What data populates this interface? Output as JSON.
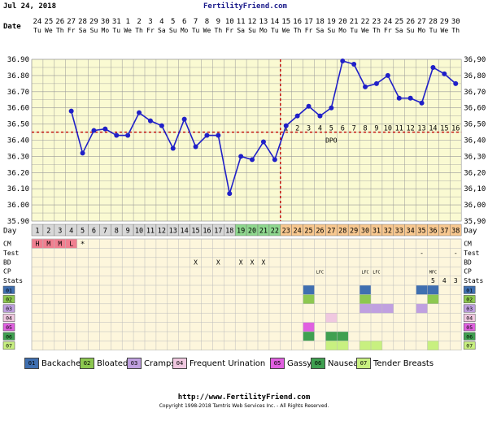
{
  "header": {
    "date": "Jul 24, 2018",
    "site": "FertilityFriend.com"
  },
  "chart_data": {
    "type": "line",
    "date_label": "Date",
    "day_label": "Day",
    "dates": [
      "24",
      "25",
      "26",
      "27",
      "28",
      "29",
      "30",
      "31",
      "1",
      "2",
      "3",
      "4",
      "5",
      "6",
      "7",
      "8",
      "9",
      "10",
      "11",
      "12",
      "13",
      "14",
      "15",
      "16",
      "17",
      "18",
      "19",
      "20",
      "21",
      "22",
      "23",
      "24",
      "25",
      "26",
      "27",
      "28",
      "29",
      "30"
    ],
    "weekdays": [
      "Tu",
      "We",
      "Th",
      "Fr",
      "Sa",
      "Su",
      "Mo",
      "Tu",
      "We",
      "Th",
      "Fr",
      "Sa",
      "Su",
      "Mo",
      "Tu",
      "We",
      "Th",
      "Fr",
      "Sa",
      "Su",
      "Mo",
      "Tu",
      "We",
      "Th",
      "Fr",
      "Sa",
      "Su",
      "Mo",
      "Tu",
      "We",
      "Th",
      "Fr",
      "Sa",
      "Su",
      "Mo",
      "Tu",
      "We",
      "Th"
    ],
    "days": [
      "1",
      "2",
      "3",
      "4",
      "5",
      "6",
      "7",
      "8",
      "9",
      "10",
      "11",
      "12",
      "13",
      "14",
      "15",
      "16",
      "17",
      "18",
      "19",
      "20",
      "21",
      "22",
      "23",
      "24",
      "25",
      "26",
      "27",
      "28",
      "29",
      "30",
      "31",
      "32",
      "33",
      "34",
      "35",
      "36",
      "37",
      "38"
    ],
    "y_ticks": [
      "35.90",
      "36.00",
      "36.10",
      "36.20",
      "36.30",
      "36.40",
      "36.50",
      "36.60",
      "36.70",
      "36.80",
      "36.90"
    ],
    "y_ticks_right": [
      "35,90",
      "36,00",
      "36,10",
      "36,20",
      "36,30",
      "36,40",
      "36,50",
      "36,60",
      "36,70",
      "36,80",
      "36,90"
    ],
    "ylim": [
      35.9,
      36.9
    ],
    "temps": [
      null,
      null,
      null,
      36.58,
      36.32,
      36.46,
      36.47,
      36.43,
      36.43,
      36.57,
      36.52,
      36.49,
      36.35,
      36.53,
      36.36,
      36.43,
      36.43,
      36.07,
      36.3,
      36.28,
      36.39,
      36.28,
      36.49,
      36.55,
      36.61,
      36.55,
      36.6,
      36.89,
      36.87,
      36.73,
      36.75,
      36.8,
      36.66,
      36.66,
      36.63,
      36.85,
      36.81,
      36.75
    ],
    "coverline": 36.45,
    "ovulation_day": 22,
    "dpo": [
      "1",
      "2",
      "3",
      "4",
      "5",
      "6",
      "7",
      "8",
      "9",
      "10",
      "11",
      "12",
      "13",
      "14",
      "15",
      "16"
    ],
    "dpo_label": "DPO",
    "rows": {
      "cm_label": "CM",
      "cm": [
        "H",
        "M",
        "M",
        "L",
        "*"
      ],
      "test_label": "Test",
      "test": {
        "35": "-",
        "38": "-"
      },
      "bd_label": "BD",
      "bd": {
        "15": "X",
        "17": "X",
        "19": "X",
        "20": "X",
        "21": "X"
      },
      "cp_label": "CP",
      "cp": {
        "26": "LFC",
        "30": "LFC",
        "31": "LFC",
        "36": "MFC"
      },
      "stats_label": "Stats",
      "stats": {
        "36": "5",
        "37": "4",
        "38": "3"
      }
    },
    "symptoms": [
      {
        "code": "01",
        "name": "Backache",
        "color": "#3f6fb0",
        "days": [
          25,
          30,
          35,
          36
        ]
      },
      {
        "code": "02",
        "name": "Bloated",
        "color": "#8dc850",
        "days": [
          25,
          30,
          36
        ]
      },
      {
        "code": "03",
        "name": "Cramps",
        "color": "#c0a0e0",
        "days": [
          30,
          31,
          32,
          35
        ]
      },
      {
        "code": "04",
        "name": "Frequent Urination",
        "color": "#f0c8e0",
        "days": [
          27
        ]
      },
      {
        "code": "05",
        "name": "Gassy",
        "color": "#e060e0",
        "days": [
          25
        ]
      },
      {
        "code": "06",
        "name": "Nausea",
        "color": "#3fa050",
        "days": [
          25,
          27,
          28
        ]
      },
      {
        "code": "07",
        "name": "Tender Breasts",
        "color": "#c8f080",
        "days": [
          27,
          28,
          30,
          31,
          36
        ]
      }
    ]
  },
  "footer": {
    "url": "http://www.FertilityFriend.com",
    "copyright": "Copyright 1998-2018 Tamtris Web Services Inc. - All Rights Reserved."
  }
}
